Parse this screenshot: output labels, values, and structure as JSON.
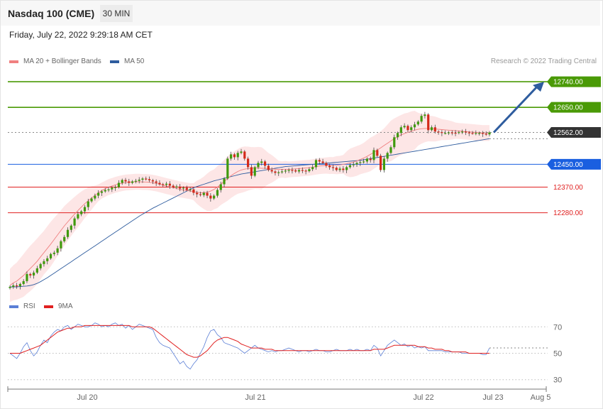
{
  "header": {
    "instrument": "Nasdaq 100 (CME)",
    "timeframe": "30 MIN",
    "timestamp": "Friday, July 22, 2022 9:29:18 AM CET"
  },
  "legend": {
    "ma20": {
      "label": "MA 20 + Bollinger Bands",
      "color": "#f08080"
    },
    "ma50": {
      "label": "MA 50",
      "color": "#2e5c9e"
    },
    "credit": "Research © 2022 Trading Central"
  },
  "rsi_legend": {
    "rsi": {
      "label": "RSI",
      "color": "#5b7fd6"
    },
    "ma9": {
      "label": "9MA",
      "color": "#e02020"
    }
  },
  "chart_data": [
    {
      "type": "candlestick",
      "title": "Nasdaq 100 (CME)",
      "ylim": [
        11990,
        12790
      ],
      "levels": [
        {
          "value": 12740.0,
          "label": "12740.00",
          "kind": "resistance",
          "color": "#4a9a06"
        },
        {
          "value": 12650.0,
          "label": "12650.00",
          "kind": "resistance",
          "color": "#4a9a06"
        },
        {
          "value": 12562.0,
          "label": "12562.00",
          "kind": "last",
          "color": "#333333"
        },
        {
          "value": 12450.0,
          "label": "12450.00",
          "kind": "pivot",
          "color": "#1a5fe0"
        },
        {
          "value": 12370.0,
          "label": "12370.00",
          "kind": "support",
          "color": "#e02020"
        },
        {
          "value": 12280.0,
          "label": "12280.00",
          "kind": "support",
          "color": "#e02020"
        }
      ],
      "x_labels": [
        "Jul 20",
        "Jul 21",
        "Jul 22",
        "Jul 23",
        "Aug 5"
      ],
      "closes": [
        12020,
        12025,
        12022,
        12030,
        12040,
        12065,
        12060,
        12070,
        12085,
        12100,
        12110,
        12120,
        12135,
        12140,
        12155,
        12180,
        12195,
        12220,
        12235,
        12260,
        12275,
        12285,
        12300,
        12320,
        12330,
        12340,
        12350,
        12355,
        12360,
        12362,
        12368,
        12370,
        12385,
        12395,
        12390,
        12385,
        12390,
        12392,
        12396,
        12400,
        12398,
        12394,
        12390,
        12385,
        12380,
        12378,
        12382,
        12375,
        12370,
        12372,
        12365,
        12368,
        12360,
        12362,
        12350,
        12345,
        12342,
        12350,
        12340,
        12330,
        12340,
        12360,
        12380,
        12400,
        12470,
        12485,
        12475,
        12490,
        12495,
        12470,
        12440,
        12410,
        12440,
        12455,
        12460,
        12445,
        12430,
        12425,
        12420,
        12422,
        12425,
        12428,
        12430,
        12429,
        12425,
        12430,
        12428,
        12426,
        12433,
        12440,
        12465,
        12460,
        12455,
        12445,
        12440,
        12438,
        12430,
        12435,
        12430,
        12440,
        12447,
        12450,
        12455,
        12458,
        12460,
        12470,
        12465,
        12500,
        12480,
        12430,
        12470,
        12490,
        12510,
        12545,
        12560,
        12580,
        12585,
        12570,
        12580,
        12590,
        12600,
        12620,
        12625,
        12570,
        12580,
        12565,
        12563,
        12560,
        12560,
        12562,
        12561,
        12560,
        12563,
        12565,
        12562,
        12560,
        12559,
        12560,
        12560,
        12557,
        12555,
        12562
      ],
      "ma20": [
        12025,
        12034,
        12040,
        12050,
        12060,
        12073,
        12085,
        12097,
        12110,
        12125,
        12140,
        12155,
        12170,
        12186,
        12202,
        12218,
        12234,
        12248,
        12262,
        12275,
        12288,
        12300,
        12312,
        12322,
        12332,
        12341,
        12350,
        12358,
        12364,
        12370,
        12374,
        12378,
        12381,
        12384,
        12386,
        12387,
        12388,
        12389,
        12389,
        12388,
        12388,
        12387,
        12385,
        12383,
        12380,
        12377,
        12374,
        12371,
        12368,
        12365,
        12362,
        12360,
        12358,
        12356,
        12354,
        12352,
        12350,
        12350,
        12352,
        12356,
        12362,
        12370,
        12380,
        12390,
        12400,
        12410,
        12418,
        12425,
        12430,
        12433,
        12435,
        12436,
        12437,
        12437,
        12436,
        12436,
        12435,
        12434,
        12433,
        12432,
        12432,
        12432,
        12432,
        12433,
        12434,
        12435,
        12436,
        12437,
        12438,
        12440,
        12442,
        12444,
        12445,
        12446,
        12446,
        12446,
        12447,
        12448,
        12450,
        12452,
        12455,
        12458,
        12462,
        12467,
        12472,
        12478,
        12485,
        12492,
        12500,
        12508,
        12516,
        12524,
        12532,
        12540,
        12547,
        12553,
        12558,
        12562,
        12566,
        12570,
        12573,
        12575,
        12576,
        12576,
        12575,
        12574,
        12573,
        12572,
        12571,
        12570,
        12569,
        12568,
        12567,
        12566,
        12565,
        12564,
        12563,
        12562,
        12561,
        12560,
        12560,
        12560
      ],
      "ma50": [
        12020,
        12020,
        12020,
        12021,
        12022,
        12023,
        12025,
        12028,
        12032,
        12038,
        12045,
        12052,
        12060,
        12068,
        12076,
        12084,
        12092,
        12100,
        12108,
        12116,
        12124,
        12132,
        12140,
        12148,
        12156,
        12164,
        12172,
        12180,
        12188,
        12196,
        12204,
        12212,
        12220,
        12228,
        12236,
        12244,
        12252,
        12260,
        12268,
        12275,
        12282,
        12289,
        12296,
        12302,
        12308,
        12314,
        12320,
        12326,
        12332,
        12338,
        12344,
        12350,
        12356,
        12362,
        12368,
        12372,
        12376,
        12380,
        12384,
        12388,
        12392,
        12395,
        12398,
        12401,
        12404,
        12407,
        12410,
        12413,
        12416,
        12418,
        12420,
        12422,
        12424,
        12426,
        12428,
        12430,
        12432,
        12434,
        12436,
        12438,
        12440,
        12442,
        12443,
        12444,
        12445,
        12446,
        12447,
        12448,
        12449,
        12450,
        12451,
        12452,
        12453,
        12454,
        12455,
        12456,
        12457,
        12458,
        12459,
        12460,
        12461,
        12462,
        12463,
        12464,
        12466,
        12468,
        12470,
        12472,
        12474,
        12476,
        12478,
        12480,
        12482,
        12484,
        12486,
        12488,
        12490,
        12492,
        12494,
        12496,
        12498,
        12500,
        12502,
        12504,
        12506,
        12508,
        12510,
        12512,
        12514,
        12516,
        12518,
        12520,
        12522,
        12524,
        12526,
        12528,
        12530,
        12532,
        12534,
        12536,
        12538,
        12540
      ]
    },
    {
      "type": "line",
      "title": "RSI",
      "ylim": [
        25,
        75
      ],
      "y_ticks": [
        70,
        50,
        30
      ],
      "series": [
        {
          "name": "RSI",
          "values": [
            50,
            48,
            46,
            50,
            55,
            58,
            52,
            48,
            51,
            56,
            60,
            58,
            63,
            66,
            68,
            67,
            70,
            71,
            68,
            70,
            72,
            71,
            70,
            70,
            71,
            73,
            72,
            70,
            71,
            70,
            72,
            73,
            71,
            72,
            69,
            71,
            68,
            70,
            72,
            71,
            70,
            69,
            68,
            62,
            58,
            56,
            55,
            54,
            50,
            46,
            42,
            44,
            40,
            38,
            42,
            45,
            50,
            55,
            62,
            67,
            68,
            64,
            62,
            58,
            57,
            56,
            55,
            54,
            52,
            50,
            52,
            54,
            56,
            54,
            53,
            52,
            51,
            52,
            51,
            52,
            52,
            53,
            54,
            53,
            52,
            51,
            52,
            52,
            51,
            52,
            53,
            52,
            52,
            51,
            51,
            52,
            53,
            52,
            52,
            52,
            53,
            52,
            53,
            52,
            52,
            53,
            52,
            56,
            54,
            48,
            52,
            56,
            58,
            60,
            58,
            56,
            57,
            55,
            56,
            54,
            55,
            54,
            55,
            52,
            52,
            52,
            52,
            52,
            51,
            51,
            51,
            51,
            51,
            50,
            50,
            50,
            50,
            50,
            50,
            49,
            49,
            54
          ]
        },
        {
          "name": "9MA",
          "values": [
            50,
            50,
            50,
            50,
            51,
            52,
            53,
            54,
            55,
            56,
            58,
            60,
            62,
            64,
            66,
            67,
            68,
            69,
            69,
            70,
            70,
            70,
            71,
            71,
            71,
            71,
            71,
            71,
            71,
            71,
            71,
            71,
            71,
            71,
            71,
            71,
            70,
            70,
            70,
            70,
            70,
            70,
            69,
            67,
            65,
            63,
            61,
            59,
            57,
            55,
            53,
            51,
            49,
            48,
            47,
            47,
            48,
            50,
            52,
            55,
            58,
            60,
            61,
            62,
            62,
            61,
            60,
            59,
            57,
            56,
            55,
            54,
            54,
            54,
            54,
            53,
            53,
            53,
            52,
            52,
            52,
            52,
            52,
            52,
            52,
            52,
            52,
            52,
            52,
            52,
            52,
            52,
            52,
            52,
            52,
            52,
            52,
            52,
            52,
            52,
            52,
            52,
            52,
            52,
            52,
            52,
            52,
            53,
            53,
            53,
            53,
            54,
            55,
            56,
            56,
            56,
            56,
            56,
            56,
            56,
            55,
            55,
            55,
            54,
            54,
            53,
            53,
            53,
            52,
            52,
            51,
            51,
            51,
            51,
            51,
            50,
            50,
            50,
            50,
            50,
            50,
            50
          ]
        }
      ],
      "x_labels": [
        "Jul 20",
        "Jul 21",
        "Jul 22",
        "Jul 23",
        "Aug 5"
      ]
    }
  ]
}
